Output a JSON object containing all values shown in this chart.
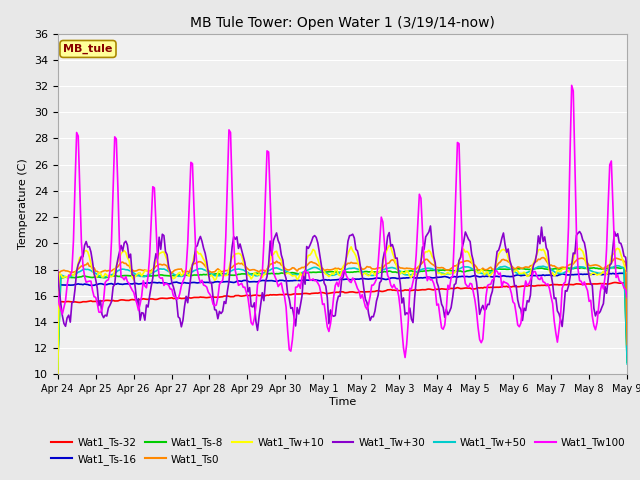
{
  "title": "MB Tule Tower: Open Water 1 (3/19/14-now)",
  "xlabel": "Time",
  "ylabel": "Temperature (C)",
  "ylim": [
    10,
    36
  ],
  "yticks": [
    10,
    12,
    14,
    16,
    18,
    20,
    22,
    24,
    26,
    28,
    30,
    32,
    34,
    36
  ],
  "background_color": "#e8e8e8",
  "plot_bg_color": "#f0f0f0",
  "grid_color": "#ffffff",
  "series": {
    "Wat1_Ts-32": {
      "color": "#ff0000",
      "lw": 1.2
    },
    "Wat1_Ts-16": {
      "color": "#0000cc",
      "lw": 1.2
    },
    "Wat1_Ts-8": {
      "color": "#00cc00",
      "lw": 1.2
    },
    "Wat1_Ts0": {
      "color": "#ff8800",
      "lw": 1.2
    },
    "Wat1_Tw+10": {
      "color": "#ffff00",
      "lw": 1.2
    },
    "Wat1_Tw+30": {
      "color": "#8800cc",
      "lw": 1.2
    },
    "Wat1_Tw+50": {
      "color": "#00cccc",
      "lw": 1.2
    },
    "Wat1_Tw100": {
      "color": "#ff00ff",
      "lw": 1.2
    }
  },
  "x_tick_labels": [
    "Apr 24",
    "Apr 25",
    "Apr 26",
    "Apr 27",
    "Apr 28",
    "Apr 29",
    "Apr 30",
    "May 1",
    "May 2",
    "May 3",
    "May 4",
    "May 5",
    "May 6",
    "May 7",
    "May 8",
    "May 9"
  ],
  "annotation_label": "MB_tule",
  "annotation_color": "#880000",
  "annotation_bg": "#ffff99",
  "annotation_border": "#aa8800"
}
